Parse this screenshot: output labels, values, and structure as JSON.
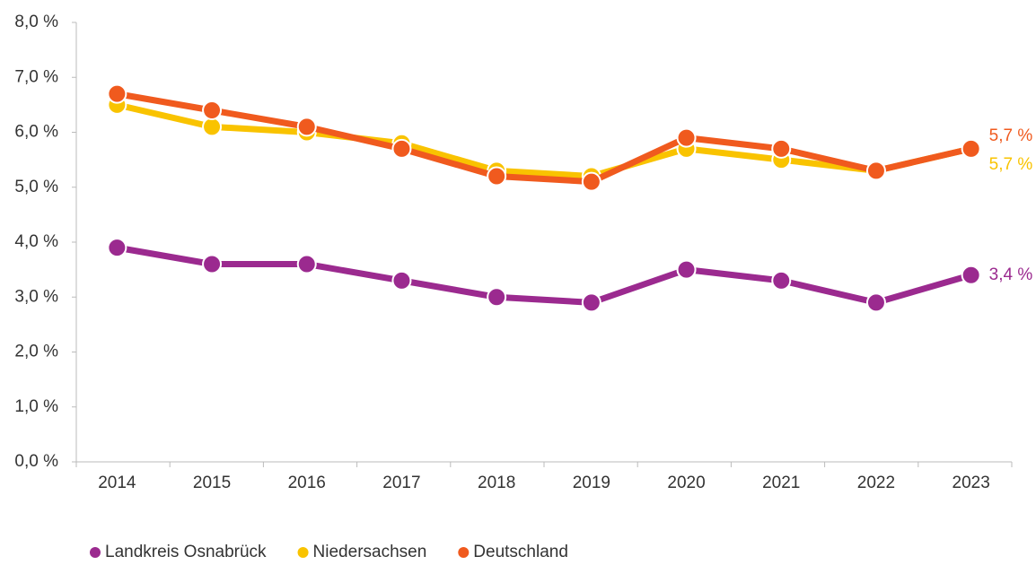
{
  "chart_data": {
    "type": "line",
    "categories": [
      "2014",
      "2015",
      "2016",
      "2017",
      "2018",
      "2019",
      "2020",
      "2021",
      "2022",
      "2023"
    ],
    "series": [
      {
        "name": "Landkreis Osnabrück",
        "color": "#9b2a8f",
        "values": [
          3.9,
          3.6,
          3.6,
          3.3,
          3.0,
          2.9,
          3.5,
          3.3,
          2.9,
          3.4
        ],
        "value_labels": [
          null,
          null,
          null,
          null,
          null,
          null,
          null,
          null,
          null,
          "3,4 %"
        ]
      },
      {
        "name": "Niedersachsen",
        "color": "#f9c300",
        "values": [
          6.5,
          6.1,
          6.0,
          5.8,
          5.3,
          5.2,
          5.7,
          5.5,
          5.3,
          5.7
        ],
        "value_labels": [
          null,
          null,
          null,
          null,
          null,
          null,
          null,
          null,
          null,
          "5,7 %"
        ]
      },
      {
        "name": "Deutschland",
        "color": "#f05a1e",
        "values": [
          6.7,
          6.4,
          6.1,
          5.7,
          5.2,
          5.1,
          5.9,
          5.7,
          5.3,
          5.7
        ],
        "value_labels": [
          null,
          null,
          null,
          null,
          null,
          null,
          null,
          null,
          null,
          "5,7 %"
        ]
      }
    ],
    "ylim": [
      0,
      8
    ],
    "yticks": [
      {
        "value": 0,
        "label": "0,0 %"
      },
      {
        "value": 1,
        "label": "1,0 %"
      },
      {
        "value": 2,
        "label": "2,0 %"
      },
      {
        "value": 3,
        "label": "3,0 %"
      },
      {
        "value": 4,
        "label": "4,0 %"
      },
      {
        "value": 5,
        "label": "5,0 %"
      },
      {
        "value": 6,
        "label": "6,0 %"
      },
      {
        "value": 7,
        "label": "7,0 %"
      },
      {
        "value": 8,
        "label": "8,0 %"
      }
    ],
    "legend": "bottom-left"
  }
}
